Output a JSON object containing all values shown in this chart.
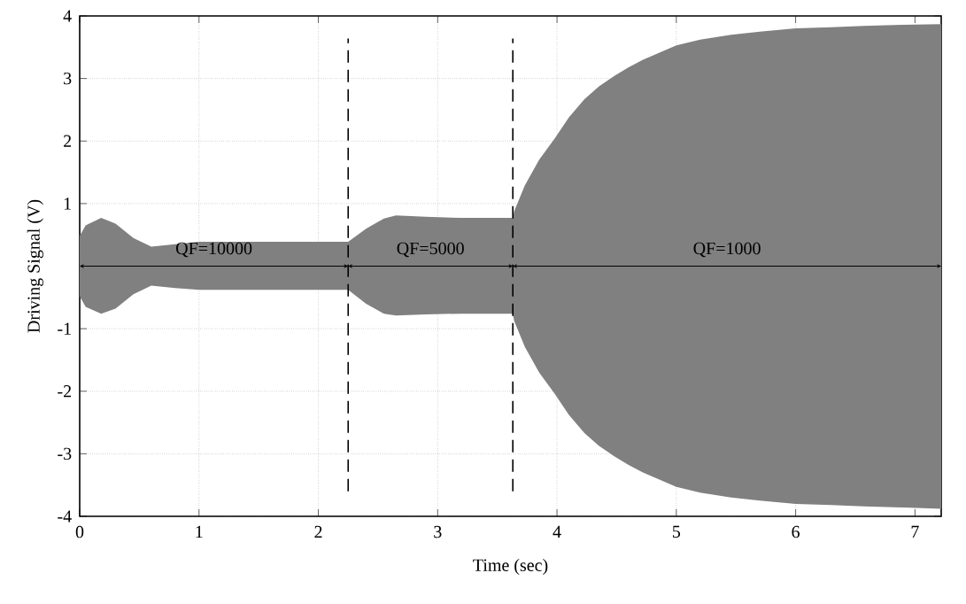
{
  "chart_data": {
    "type": "area",
    "xlabel": "Time (sec)",
    "ylabel": "Driving Signal (V)",
    "xlim": [
      0,
      7.22
    ],
    "ylim": [
      -4,
      4
    ],
    "xticks": [
      0,
      1,
      2,
      3,
      4,
      5,
      6,
      7
    ],
    "yticks": [
      -4,
      -3,
      -2,
      -1,
      {
        "value": 0,
        "label": null
      },
      1,
      2,
      3,
      4
    ],
    "grid": true,
    "series": [
      {
        "color": "#808080",
        "x": [
          0,
          0.05,
          0.18,
          0.3,
          0.45,
          0.6,
          0.8,
          1.0,
          1.5,
          2.0,
          2.25,
          2.4,
          2.55,
          2.65,
          2.9,
          3.2,
          3.63,
          3.64,
          3.73,
          3.85,
          3.98,
          4.1,
          4.23,
          4.35,
          4.48,
          4.6,
          4.72,
          5.0,
          5.2,
          5.46,
          5.7,
          6.0,
          6.3,
          6.57,
          6.9,
          7.22
        ],
        "values": [
          0.48,
          0.65,
          0.77,
          0.68,
          0.45,
          0.31,
          0.35,
          0.39,
          0.39,
          0.39,
          0.39,
          0.6,
          0.76,
          0.81,
          0.79,
          0.77,
          0.77,
          0.87,
          1.29,
          1.7,
          2.04,
          2.38,
          2.67,
          2.87,
          3.04,
          3.18,
          3.3,
          3.53,
          3.62,
          3.7,
          3.75,
          3.8,
          3.82,
          3.84,
          3.86,
          3.87
        ]
      },
      {
        "color": "#808080",
        "x": [
          0,
          0.05,
          0.18,
          0.3,
          0.45,
          0.6,
          0.8,
          1.0,
          1.5,
          2.0,
          2.25,
          2.4,
          2.55,
          2.65,
          2.9,
          3.2,
          3.63,
          3.64,
          3.73,
          3.85,
          3.98,
          4.1,
          4.23,
          4.35,
          4.48,
          4.6,
          4.72,
          5.0,
          5.2,
          5.46,
          5.7,
          6.0,
          6.3,
          6.57,
          6.9,
          7.22
        ],
        "values": [
          -0.48,
          -0.65,
          -0.76,
          -0.68,
          -0.45,
          -0.31,
          -0.35,
          -0.38,
          -0.38,
          -0.38,
          -0.38,
          -0.6,
          -0.76,
          -0.79,
          -0.77,
          -0.76,
          -0.76,
          -0.87,
          -1.29,
          -1.7,
          -2.04,
          -2.38,
          -2.67,
          -2.87,
          -3.04,
          -3.18,
          -3.3,
          -3.53,
          -3.62,
          -3.7,
          -3.75,
          -3.8,
          -3.82,
          -3.84,
          -3.86,
          -3.88
        ]
      }
    ],
    "ref_lines": [
      {
        "axis": "x",
        "value": 2.25,
        "line_style": "dashed"
      },
      {
        "axis": "x",
        "value": 3.63,
        "line_style": "dashed"
      }
    ],
    "annotations": [
      "QF=10000",
      "QF=5000",
      "QF=1000"
    ]
  }
}
